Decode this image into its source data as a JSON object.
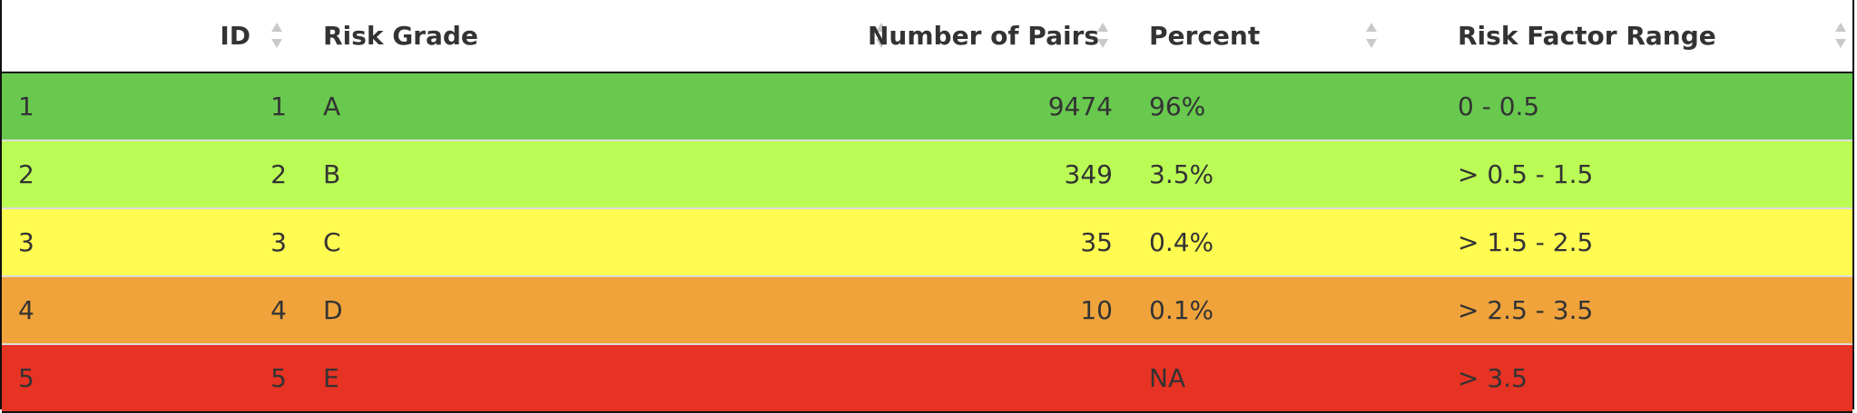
{
  "table": {
    "headers": {
      "id": "ID",
      "grade": "Risk Grade",
      "pairs": "Number of Pairs",
      "percent": "Percent",
      "range": "Risk Factor Range"
    },
    "rows": [
      {
        "row_num": "1",
        "id": "1",
        "grade": "A",
        "pairs": "9474",
        "percent": "96%",
        "range": "0 - 0.5",
        "color": "#68c94e"
      },
      {
        "row_num": "2",
        "id": "2",
        "grade": "B",
        "pairs": "349",
        "percent": "3.5%",
        "range": "> 0.5 - 1.5",
        "color": "#bafc55"
      },
      {
        "row_num": "3",
        "id": "3",
        "grade": "C",
        "pairs": "35",
        "percent": "0.4%",
        "range": "> 1.5 - 2.5",
        "color": "#fffb51"
      },
      {
        "row_num": "4",
        "id": "4",
        "grade": "D",
        "pairs": "10",
        "percent": "0.1%",
        "range": "> 2.5 - 3.5",
        "color": "#f0a33b"
      },
      {
        "row_num": "5",
        "id": "5",
        "grade": "E",
        "pairs": "",
        "percent": "NA",
        "range": "> 3.5",
        "color": "#e63323"
      }
    ]
  },
  "icons": {
    "sort": "sort-both-icon"
  },
  "colors": {
    "sort_icon": "#c9c9c9",
    "border": "#111111"
  }
}
